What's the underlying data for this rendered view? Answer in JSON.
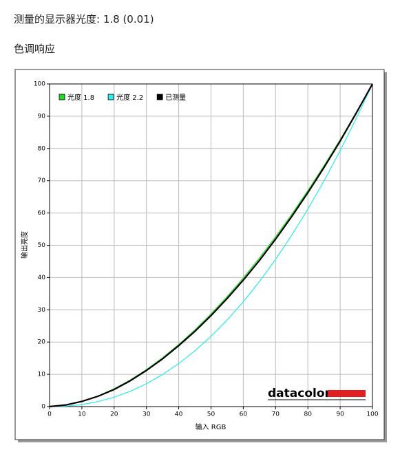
{
  "header": {
    "title": "测量的显示器光度:  1.8 (0.01)",
    "section": "色调响应"
  },
  "chart_data": {
    "type": "line",
    "x_label": "输入 RGB",
    "y_label": "输出亮度",
    "logo": "datacolor",
    "x": [
      0,
      5,
      10,
      15,
      20,
      25,
      30,
      35,
      40,
      45,
      50,
      55,
      60,
      65,
      70,
      75,
      80,
      85,
      90,
      95,
      100
    ],
    "series": [
      {
        "name": "光度 1.8",
        "color": "#22dd22",
        "values": [
          0,
          0.45,
          1.58,
          3.29,
          5.52,
          8.25,
          11.45,
          15.11,
          19.22,
          23.76,
          28.72,
          34.09,
          39.87,
          46.05,
          52.63,
          59.58,
          66.92,
          74.64,
          82.72,
          91.18,
          100
        ]
      },
      {
        "name": "光度 2.2",
        "color": "#33eeee",
        "values": [
          0,
          0.14,
          0.63,
          1.54,
          2.9,
          4.74,
          7.07,
          9.93,
          13.32,
          17.26,
          21.76,
          26.84,
          32.5,
          38.76,
          45.63,
          53.11,
          61.21,
          69.94,
          79.31,
          89.33,
          100
        ]
      },
      {
        "name": "已测量",
        "color": "#000000",
        "values": [
          0,
          0.5,
          1.6,
          3.2,
          5.3,
          8.0,
          11.2,
          14.8,
          18.9,
          23.3,
          28.2,
          33.5,
          39.2,
          45.3,
          51.9,
          58.9,
          66.3,
          74.1,
          82.3,
          91.0,
          100
        ]
      }
    ],
    "xlim": [
      0,
      100
    ],
    "ylim": [
      0,
      100
    ],
    "xticks": [
      0,
      10,
      20,
      30,
      40,
      50,
      60,
      70,
      80,
      90,
      100
    ],
    "yticks": [
      0,
      10,
      20,
      30,
      40,
      50,
      60,
      70,
      80,
      90,
      100
    ],
    "grid": true,
    "legend": "top-left"
  }
}
